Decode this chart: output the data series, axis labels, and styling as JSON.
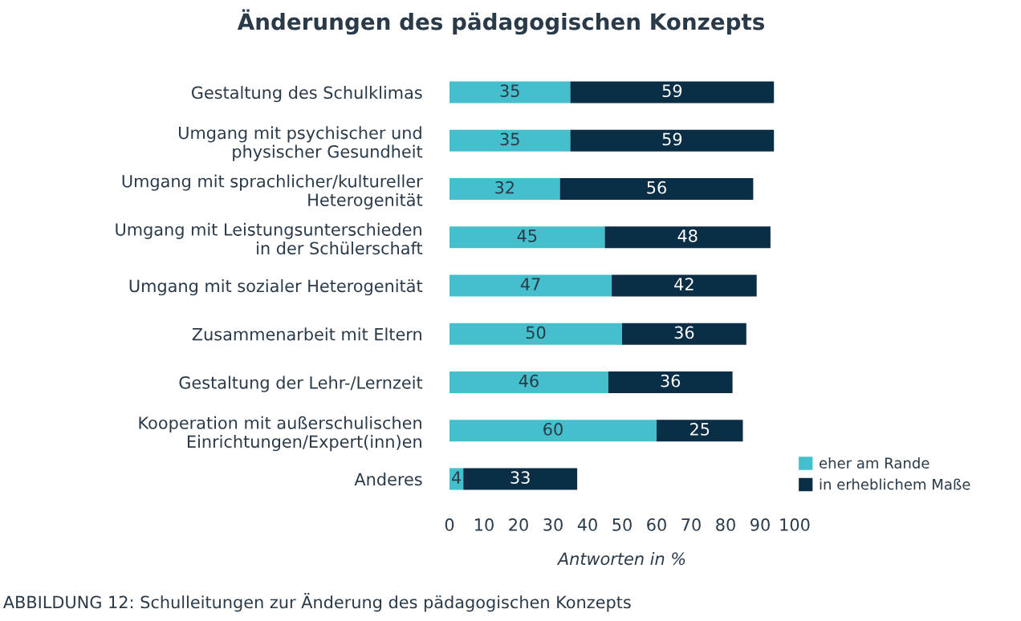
{
  "chart_data": {
    "type": "bar",
    "orientation": "horizontal",
    "stacked": true,
    "title": "Änderungen des pädagogischen Konzepts",
    "categories": [
      "Gestaltung des Schulklimas",
      "Umgang mit psychischer und\nphysischer Gesundheit",
      "Umgang mit sprachlicher/kultureller\nHeterogenität",
      "Umgang mit Leistungsunterschieden\nin der Schülerschaft",
      "Umgang mit sozialer Heterogenität",
      "Zusammenarbeit mit Eltern",
      "Gestaltung der Lehr-/Lernzeit",
      "Kooperation mit außerschulischen\nEinrichtungen/Expert(inn)en",
      "Anderes"
    ],
    "series": [
      {
        "name": "eher am Rande",
        "color": "#46bfcc",
        "values": [
          35,
          35,
          32,
          45,
          47,
          50,
          46,
          60,
          4
        ]
      },
      {
        "name": "in erheblichem Maße",
        "color": "#0a2e45",
        "values": [
          59,
          59,
          56,
          48,
          42,
          36,
          36,
          25,
          33
        ]
      }
    ],
    "xlabel": "Antworten in %",
    "xlim": [
      0,
      100
    ],
    "xticks": [
      0,
      10,
      20,
      30,
      40,
      50,
      60,
      70,
      80,
      90,
      100
    ],
    "data_labels": true,
    "grid": false,
    "legend": "bottom right",
    "annotations": [
      "ABBILDUNG 12: Schulleitungen zur Änderung des pädagogischen Konzepts"
    ]
  }
}
